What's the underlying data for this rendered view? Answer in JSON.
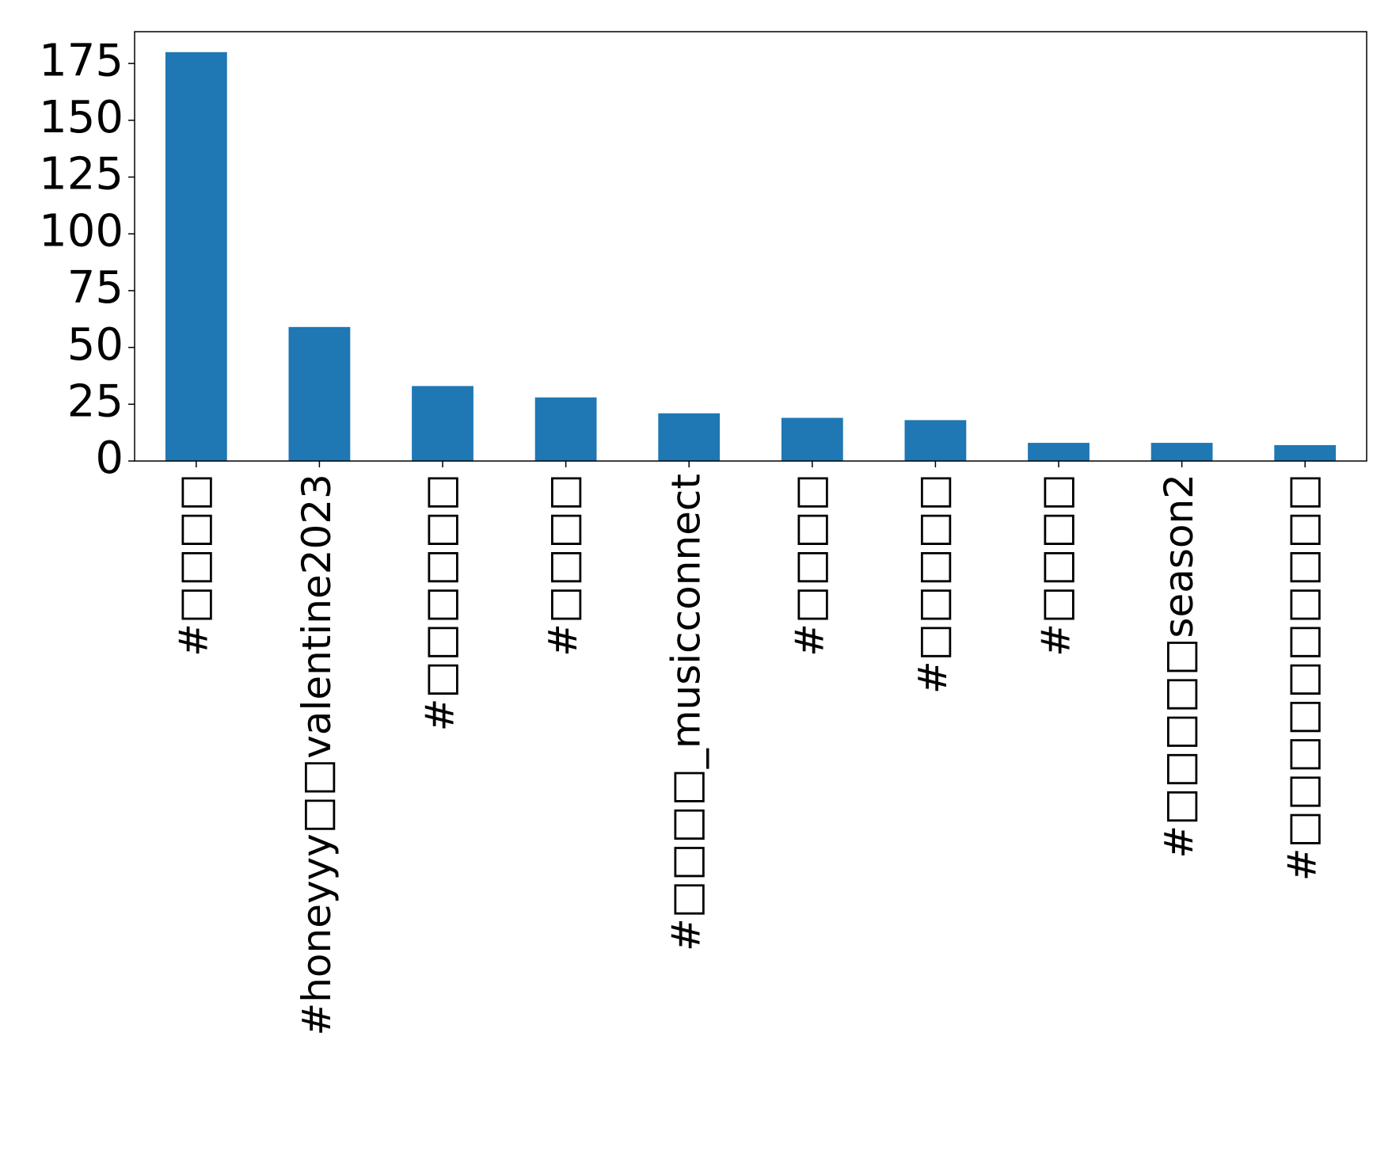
{
  "chart_data": {
    "type": "bar",
    "categories": [
      "#□□□□",
      "#honeyyy□□valentine2023",
      "#□□□□□□",
      "#□□□□",
      "#□□□□_musicconnect",
      "#□□□□",
      "#□□□□□",
      "#□□□□",
      "#□□□□□season2",
      "#□□□□□□□□□□"
    ],
    "values": [
      180,
      59,
      33,
      28,
      21,
      19,
      18,
      8,
      8,
      7
    ],
    "ylim": [
      0,
      189
    ],
    "yticks": [
      0,
      25,
      50,
      75,
      100,
      125,
      150,
      175
    ],
    "title": "",
    "xlabel": "",
    "ylabel": "",
    "bar_color": "#1f77b4",
    "grid": false,
    "legend": false
  }
}
